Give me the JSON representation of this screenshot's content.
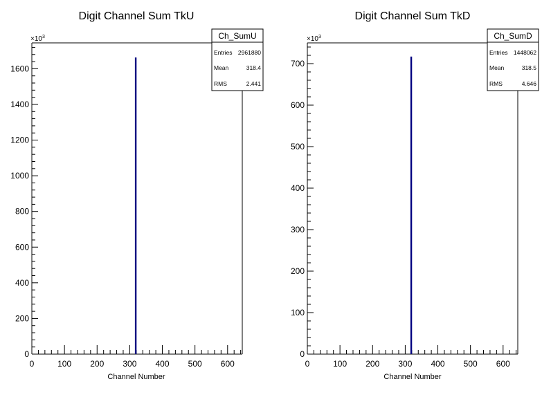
{
  "charts": [
    {
      "title": "Digit Channel Sum TkU",
      "xlabel": "Channel Number",
      "exponent_label": "×10",
      "exponent_power": "3",
      "stats": {
        "name": "Ch_SumU",
        "rows": [
          {
            "label": "Entries",
            "value": "2961880"
          },
          {
            "label": "Mean",
            "value": "318.4"
          },
          {
            "label": "RMS",
            "value": "2.441"
          }
        ]
      }
    },
    {
      "title": "Digit Channel Sum TkD",
      "xlabel": "Channel Number",
      "exponent_label": "×10",
      "exponent_power": "3",
      "stats": {
        "name": "Ch_SumD",
        "rows": [
          {
            "label": "Entries",
            "value": "1448062"
          },
          {
            "label": "Mean",
            "value": "318.5"
          },
          {
            "label": "RMS",
            "value": "4.646"
          }
        ]
      }
    }
  ],
  "chart_data": [
    {
      "type": "bar",
      "title": "Digit Channel Sum TkU",
      "xlabel": "Channel Number",
      "ylabel": "",
      "y_multiplier": 1000,
      "xlim": [
        0,
        645
      ],
      "ylim": [
        0,
        1745
      ],
      "x_ticks": [
        0,
        100,
        200,
        300,
        400,
        500,
        600
      ],
      "y_ticks": [
        0,
        200,
        400,
        600,
        800,
        1000,
        1200,
        1400,
        1600
      ],
      "series": [
        {
          "x": [
            318
          ],
          "values": [
            1663
          ]
        }
      ],
      "bar_color": "#000080",
      "grid": false,
      "legend": "top-right"
    },
    {
      "type": "bar",
      "title": "Digit Channel Sum TkD",
      "xlabel": "Channel Number",
      "ylabel": "",
      "y_multiplier": 1000,
      "xlim": [
        0,
        645
      ],
      "ylim": [
        0,
        750
      ],
      "x_ticks": [
        0,
        100,
        200,
        300,
        400,
        500,
        600
      ],
      "y_ticks": [
        0,
        100,
        200,
        300,
        400,
        500,
        600,
        700
      ],
      "series": [
        {
          "x": [
            318
          ],
          "values": [
            717
          ]
        }
      ],
      "bar_color": "#000080",
      "grid": false,
      "legend": "top-right"
    }
  ]
}
